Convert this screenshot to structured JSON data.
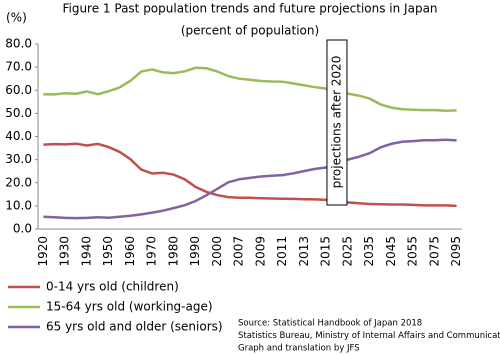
{
  "chart_data": {
    "type": "line",
    "title": "Figure 1  Past population trends and future projections in Japan",
    "subtitle": "(percent of population)",
    "y_label": "(%)",
    "annotation": "projections after 2020",
    "source": [
      "Source: Statistical Handbook of Japan 2018",
      "Statistics Bureau, Ministry of Internal Affairs and Communications",
      "Graph and translation by JFS"
    ],
    "categories": [
      "1920",
      null,
      "1930",
      null,
      "1940",
      null,
      "1950",
      null,
      "1960",
      null,
      "1970",
      null,
      "1980",
      null,
      "1990",
      null,
      "2000",
      null,
      "2007",
      null,
      "2009",
      null,
      "2011",
      null,
      "2013",
      null,
      "2015",
      null,
      "2025",
      null,
      "2035",
      null,
      "2045",
      null,
      "2055",
      null,
      "2075",
      null,
      "2095"
    ],
    "series": [
      {
        "name": "0-14 yrs old (children)",
        "color": "#c0504d",
        "values": [
          36.5,
          36.7,
          36.6,
          36.9,
          36.1,
          36.8,
          35.4,
          33.4,
          30.2,
          25.7,
          24.0,
          24.3,
          23.5,
          21.5,
          18.2,
          16.0,
          14.6,
          13.8,
          13.5,
          13.5,
          13.3,
          13.2,
          13.1,
          13.0,
          12.9,
          12.8,
          12.6,
          12.0,
          11.5,
          11.1,
          10.8,
          10.7,
          10.6,
          10.6,
          10.4,
          10.2,
          10.2,
          10.2,
          10.0
        ]
      },
      {
        "name": "15-64 yrs old (working-age)",
        "color": "#9bbb59",
        "values": [
          58.3,
          58.2,
          58.7,
          58.5,
          59.5,
          58.3,
          59.6,
          61.2,
          64.1,
          68.1,
          69.0,
          67.7,
          67.4,
          68.2,
          69.7,
          69.5,
          68.1,
          66.1,
          65.0,
          64.5,
          64.0,
          63.8,
          63.7,
          62.9,
          62.1,
          61.3,
          60.7,
          59.1,
          58.5,
          57.7,
          56.4,
          53.9,
          52.5,
          51.8,
          51.6,
          51.4,
          51.4,
          51.1,
          51.3
        ]
      },
      {
        "name": "65 yrs old and older (seniors)",
        "color": "#8064a2",
        "values": [
          5.3,
          5.1,
          4.8,
          4.7,
          4.8,
          5.1,
          4.9,
          5.3,
          5.7,
          6.3,
          7.1,
          7.9,
          9.1,
          10.3,
          12.1,
          14.6,
          17.4,
          20.2,
          21.5,
          22.1,
          22.7,
          23.0,
          23.3,
          24.1,
          25.1,
          26.0,
          26.6,
          28.9,
          30.0,
          31.2,
          32.8,
          35.3,
          36.8,
          37.7,
          38.0,
          38.4,
          38.4,
          38.6,
          38.3
        ]
      }
    ],
    "ylim": [
      0,
      80
    ],
    "yticks": [
      {
        "value": 0,
        "label": "0.0"
      },
      {
        "value": 10,
        "label": "10.0"
      },
      {
        "value": 20,
        "label": "20.0"
      },
      {
        "value": 30,
        "label": "30.0"
      },
      {
        "value": 40,
        "label": "40.0"
      },
      {
        "value": 50,
        "label": "50.0"
      },
      {
        "value": 60,
        "label": "60.0"
      },
      {
        "value": 70,
        "label": "70.0"
      },
      {
        "value": 80,
        "label": "80.0"
      }
    ],
    "grid": false
  }
}
